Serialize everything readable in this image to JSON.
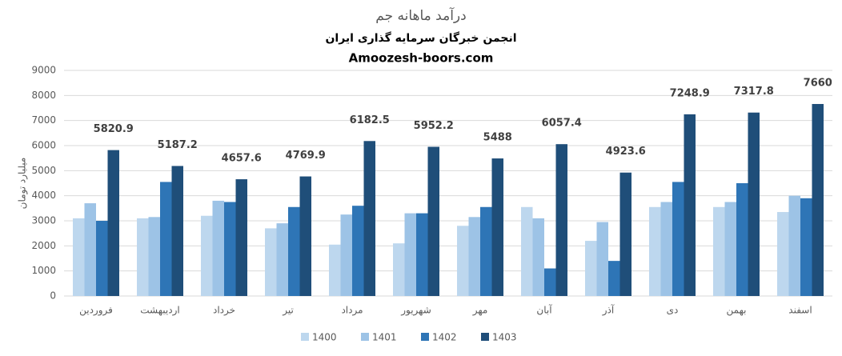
{
  "chart_data": {
    "type": "bar",
    "title": "درآمد ماهانه جم",
    "subtitle": "انجمن خبرگان سرمایه گذاری ایران",
    "source": "Amoozesh-boors.com",
    "y_label": "میلیارد تومان",
    "categories": [
      "فروردین",
      "اردیبهشت",
      "خرداد",
      "تیر",
      "مرداد",
      "شهریور",
      "مهر",
      "آبان",
      "آذر",
      "دی",
      "بهمن",
      "اسفند"
    ],
    "series": [
      {
        "name": "1400",
        "color": "#bdd7ee",
        "values": [
          3100,
          3100,
          3200,
          2700,
          2050,
          2100,
          2800,
          3550,
          2200,
          3550,
          3550,
          3350
        ]
      },
      {
        "name": "1401",
        "color": "#9dc3e6",
        "values": [
          3700,
          3150,
          3800,
          2900,
          3250,
          3300,
          3150,
          3100,
          2950,
          3750,
          3750,
          4000
        ]
      },
      {
        "name": "1402",
        "color": "#2e75b6",
        "values": [
          3000,
          4550,
          3750,
          3550,
          3600,
          3300,
          3550,
          1100,
          1400,
          4550,
          4500,
          3900
        ]
      },
      {
        "name": "1403",
        "color": "#1f4e79",
        "show_values": true,
        "values": [
          5820.9,
          5187.2,
          4657.6,
          4769.9,
          6182.5,
          5952.2,
          5488,
          6057.4,
          4923.6,
          7248.9,
          7317.8,
          7660
        ]
      }
    ],
    "ylim": [
      0,
      9000
    ],
    "yticks": [
      0,
      1000,
      2000,
      3000,
      4000,
      5000,
      6000,
      7000,
      8000,
      9000
    ],
    "grid": true,
    "legend": "bottom"
  }
}
